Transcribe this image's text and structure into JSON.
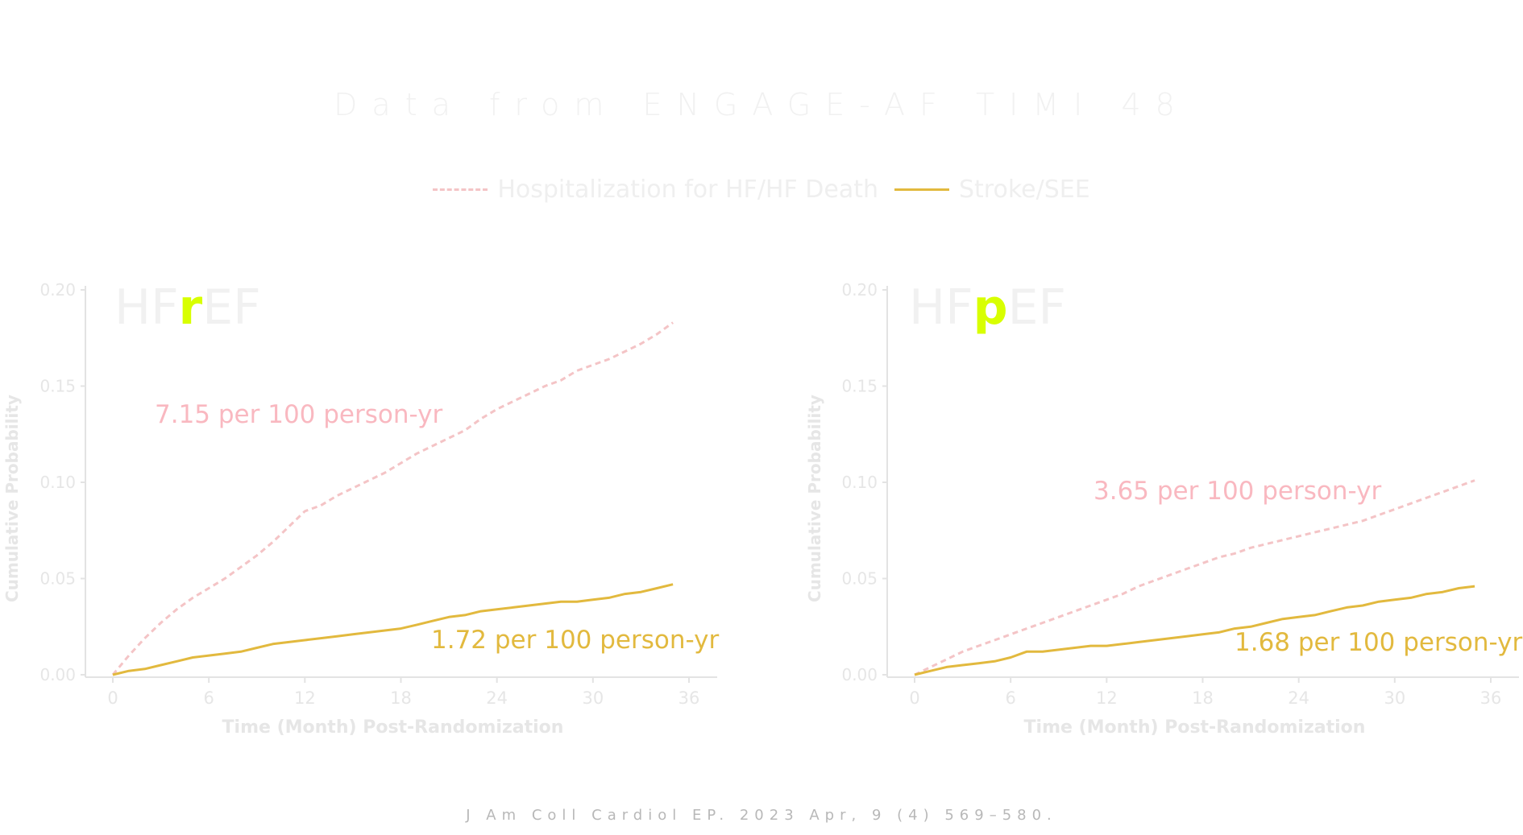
{
  "title": "Data from ENGAGE-AF TIMI 48",
  "legend": [
    {
      "label": "Hospitalization for HF/HF Death",
      "style": "dashed",
      "color": "#f4c4c6"
    },
    {
      "label": "Stroke/SEE",
      "style": "solid",
      "color": "#e2b93e"
    }
  ],
  "footer": "J Am Coll Cardiol EP. 2023 Apr, 9 (4) 569–580.",
  "colors": {
    "axis": "#e3e3e3",
    "tick_text": "#e6e6e6",
    "hf_line": "#f4c4c6",
    "stroke_line": "#e2b93e",
    "hf_annotation": "#f9b8c0",
    "stroke_annotation": "#e2b93e",
    "panel_label": "#f1f1f1",
    "panel_highlight": "#d8ff00"
  },
  "chart_data": [
    {
      "type": "line",
      "panel_label": {
        "prefix": "HF",
        "highlight": "r",
        "suffix": "EF"
      },
      "xlabel": "Time (Month) Post-Randomization",
      "ylabel": "Cumulative Probability",
      "xlim": [
        0,
        36
      ],
      "ylim": [
        0,
        0.2
      ],
      "xticks": [
        0,
        6,
        12,
        18,
        24,
        30,
        36
      ],
      "yticks": [
        "0.00",
        "0.05",
        "0.10",
        "0.15",
        "0.20"
      ],
      "grid": false,
      "series": [
        {
          "name": "Hospitalization for HF/HF Death",
          "annotation": "7.15 per 100 person-yr",
          "x": [
            0,
            1,
            2,
            3,
            4,
            5,
            6,
            7,
            8,
            9,
            10,
            11,
            12,
            13,
            14,
            15,
            16,
            17,
            18,
            19,
            20,
            21,
            22,
            23,
            24,
            25,
            26,
            27,
            28,
            29,
            30,
            31,
            32,
            33,
            34,
            35
          ],
          "values": [
            0,
            0.01,
            0.019,
            0.027,
            0.034,
            0.04,
            0.045,
            0.05,
            0.056,
            0.062,
            0.069,
            0.077,
            0.085,
            0.088,
            0.093,
            0.097,
            0.101,
            0.105,
            0.11,
            0.115,
            0.119,
            0.123,
            0.127,
            0.133,
            0.138,
            0.142,
            0.146,
            0.15,
            0.153,
            0.158,
            0.161,
            0.164,
            0.168,
            0.172,
            0.177,
            0.183
          ]
        },
        {
          "name": "Stroke/SEE",
          "annotation": "1.72 per 100 person-yr",
          "x": [
            0,
            1,
            2,
            3,
            4,
            5,
            6,
            7,
            8,
            9,
            10,
            11,
            12,
            13,
            14,
            15,
            16,
            17,
            18,
            19,
            20,
            21,
            22,
            23,
            24,
            25,
            26,
            27,
            28,
            29,
            30,
            31,
            32,
            33,
            34,
            35
          ],
          "values": [
            0,
            0.002,
            0.003,
            0.005,
            0.007,
            0.009,
            0.01,
            0.011,
            0.012,
            0.014,
            0.016,
            0.017,
            0.018,
            0.019,
            0.02,
            0.021,
            0.022,
            0.023,
            0.024,
            0.026,
            0.028,
            0.03,
            0.031,
            0.033,
            0.034,
            0.035,
            0.036,
            0.037,
            0.038,
            0.038,
            0.039,
            0.04,
            0.042,
            0.043,
            0.045,
            0.047
          ]
        }
      ]
    },
    {
      "type": "line",
      "panel_label": {
        "prefix": "HF",
        "highlight": "p",
        "suffix": "EF"
      },
      "xlabel": "Time (Month) Post-Randomization",
      "ylabel": "Cumulative Probability",
      "xlim": [
        0,
        36
      ],
      "ylim": [
        0,
        0.2
      ],
      "xticks": [
        0,
        6,
        12,
        18,
        24,
        30,
        36
      ],
      "yticks": [
        "0.00",
        "0.05",
        "0.10",
        "0.15",
        "0.20"
      ],
      "grid": false,
      "series": [
        {
          "name": "Hospitalization for HF/HF Death",
          "annotation": "3.65 per 100 person-yr",
          "x": [
            0,
            1,
            2,
            3,
            4,
            5,
            6,
            7,
            8,
            9,
            10,
            11,
            12,
            13,
            14,
            15,
            16,
            17,
            18,
            19,
            20,
            21,
            22,
            23,
            24,
            25,
            26,
            27,
            28,
            29,
            30,
            31,
            32,
            33,
            34,
            35
          ],
          "values": [
            0,
            0.004,
            0.008,
            0.012,
            0.015,
            0.018,
            0.021,
            0.024,
            0.027,
            0.03,
            0.033,
            0.036,
            0.039,
            0.042,
            0.046,
            0.049,
            0.052,
            0.055,
            0.058,
            0.061,
            0.063,
            0.066,
            0.068,
            0.07,
            0.072,
            0.074,
            0.076,
            0.078,
            0.08,
            0.083,
            0.086,
            0.089,
            0.092,
            0.095,
            0.098,
            0.101
          ]
        },
        {
          "name": "Stroke/SEE",
          "annotation": "1.68 per 100 person-yr",
          "x": [
            0,
            1,
            2,
            3,
            4,
            5,
            6,
            7,
            8,
            9,
            10,
            11,
            12,
            13,
            14,
            15,
            16,
            17,
            18,
            19,
            20,
            21,
            22,
            23,
            24,
            25,
            26,
            27,
            28,
            29,
            30,
            31,
            32,
            33,
            34,
            35
          ],
          "values": [
            0,
            0.002,
            0.004,
            0.005,
            0.006,
            0.007,
            0.009,
            0.012,
            0.012,
            0.013,
            0.014,
            0.015,
            0.015,
            0.016,
            0.017,
            0.018,
            0.019,
            0.02,
            0.021,
            0.022,
            0.024,
            0.025,
            0.027,
            0.029,
            0.03,
            0.031,
            0.033,
            0.035,
            0.036,
            0.038,
            0.039,
            0.04,
            0.042,
            0.043,
            0.045,
            0.046
          ]
        }
      ]
    }
  ]
}
